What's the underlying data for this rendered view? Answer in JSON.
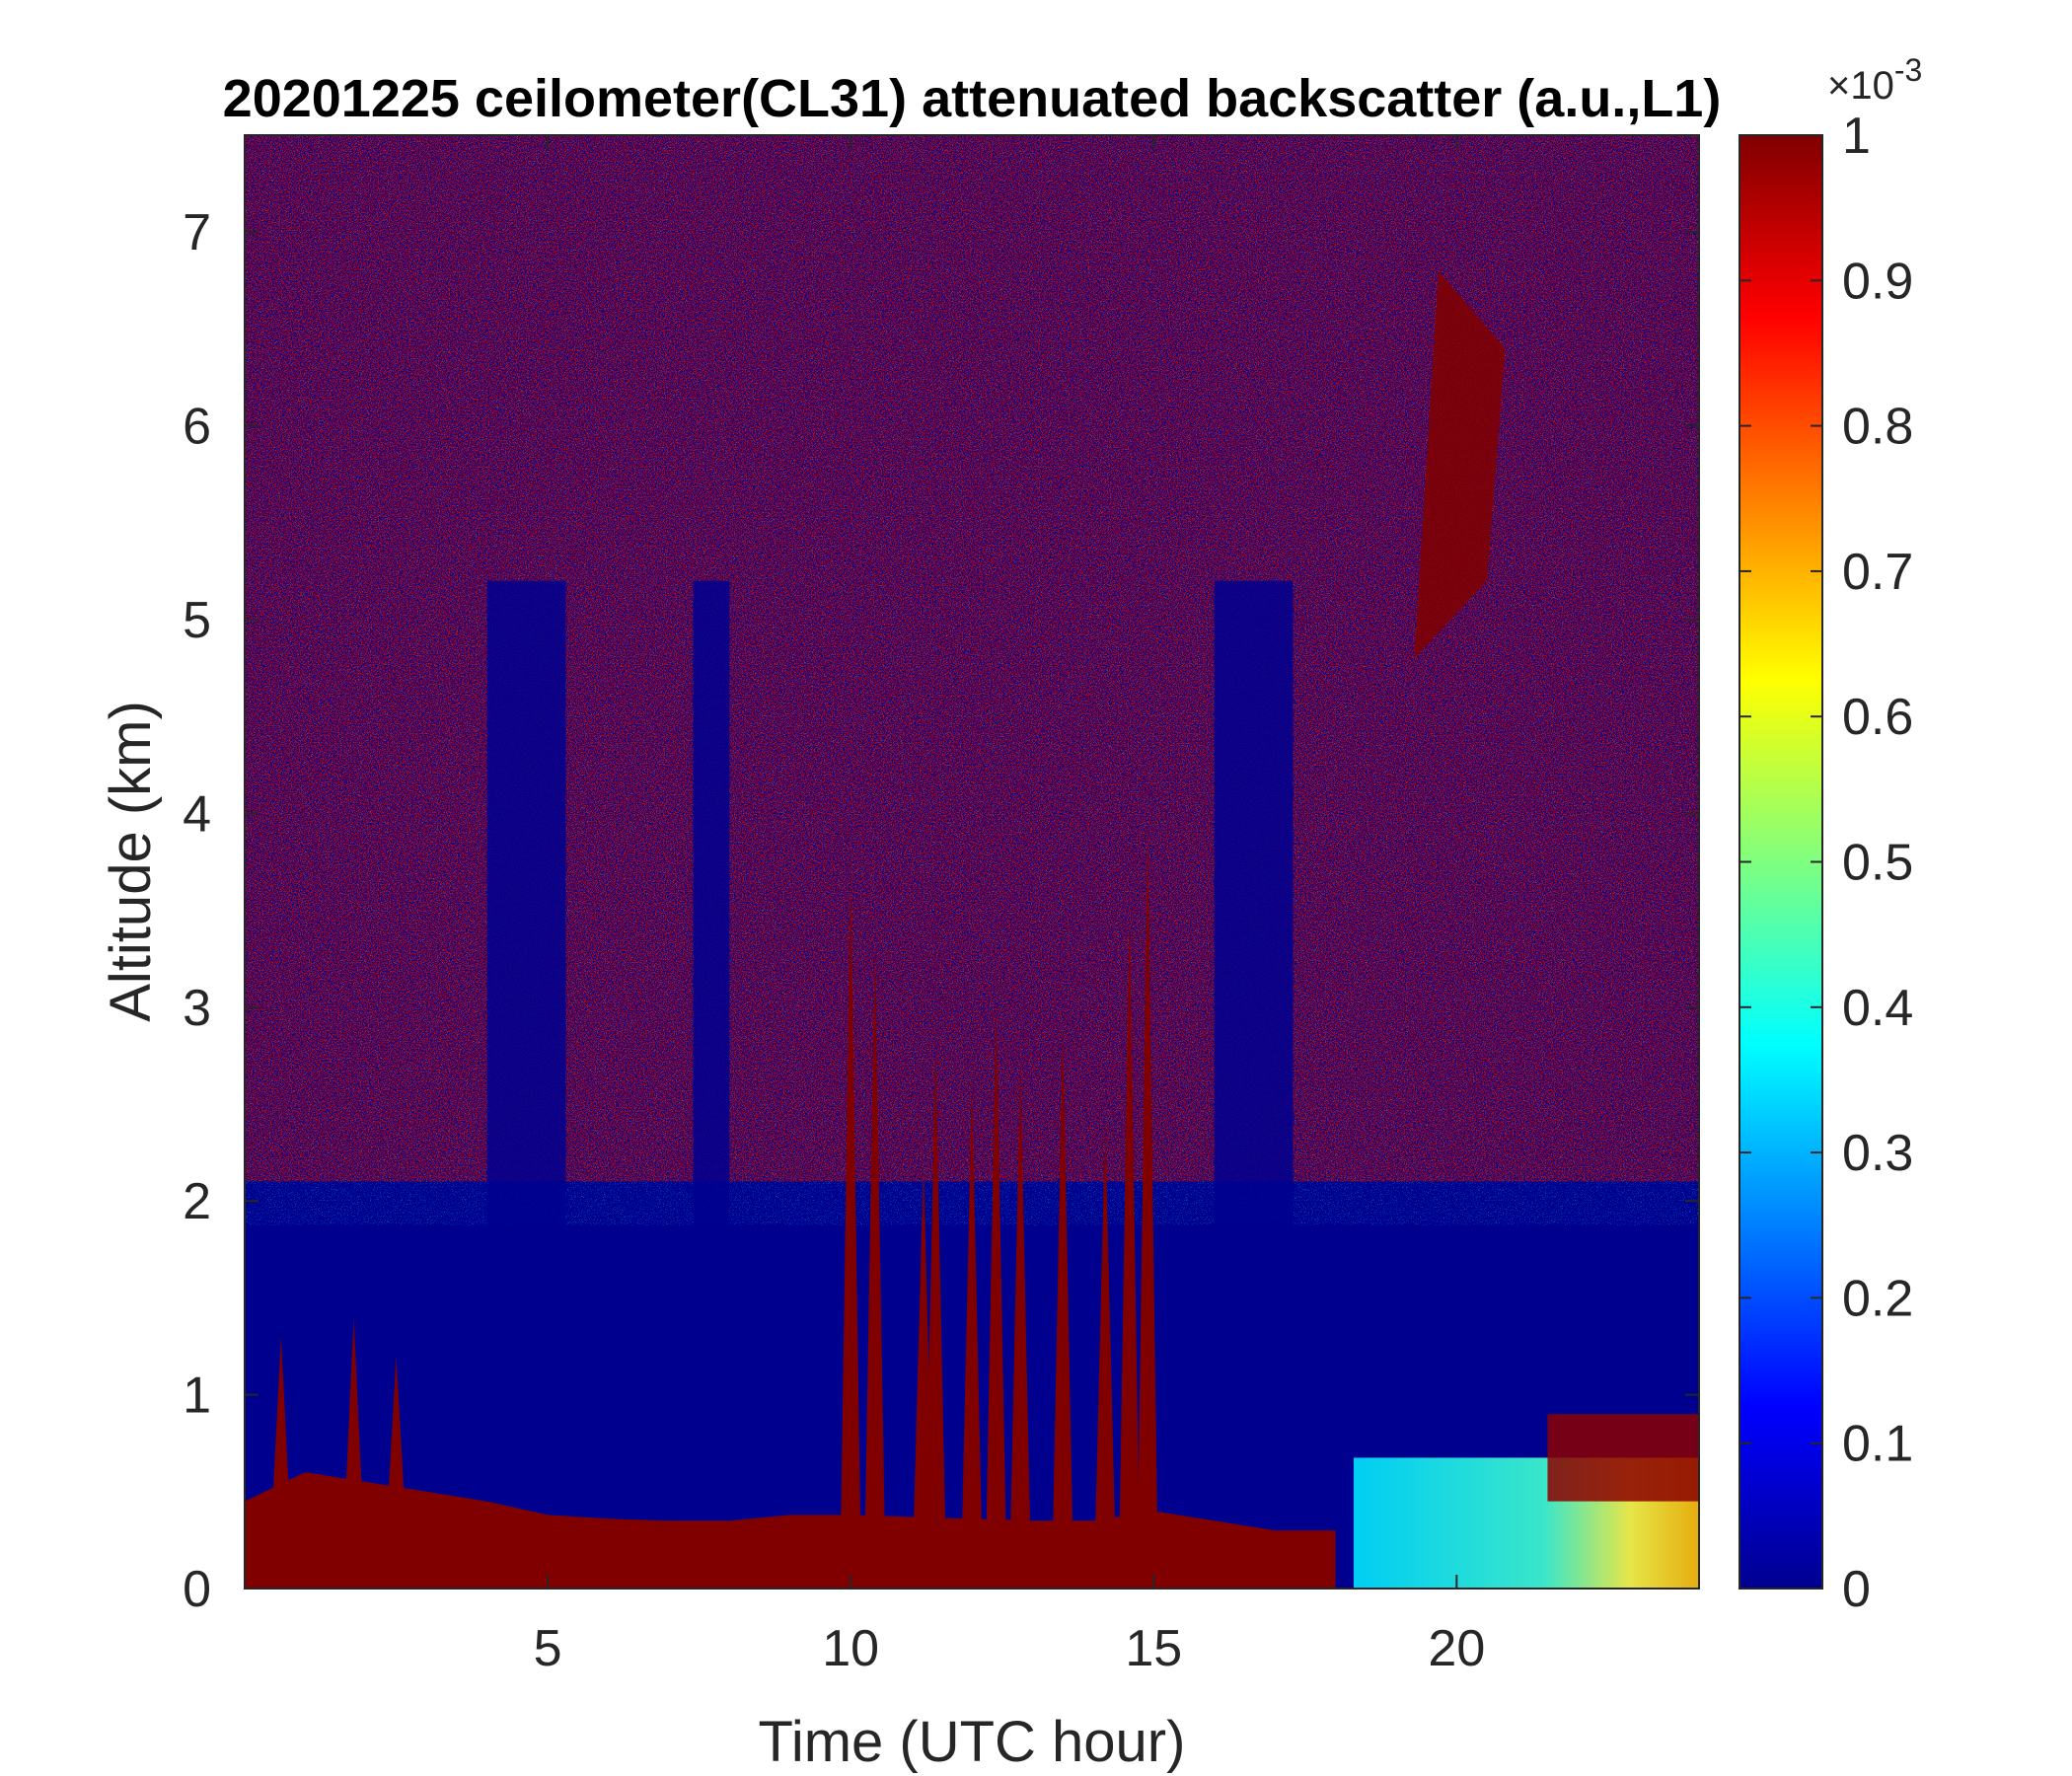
{
  "chart_data": {
    "type": "heatmap",
    "title": "20201225 ceilometer(CL31) attenuated backscatter (a.u.,L1)",
    "xlabel": "Time (UTC hour)",
    "ylabel": "Altitude (km)",
    "xlim": [
      0,
      24
    ],
    "ylim": [
      0,
      7.5
    ],
    "xticks": [
      5,
      10,
      15,
      20
    ],
    "xtick_labels": [
      "5",
      "10",
      "15",
      "20"
    ],
    "yticks": [
      0,
      1,
      2,
      3,
      4,
      5,
      6,
      7
    ],
    "ytick_labels": [
      "0",
      "1",
      "2",
      "3",
      "4",
      "5",
      "6",
      "7"
    ],
    "colorbar": {
      "colormap": "jet",
      "min": 0,
      "max": 0.001,
      "ticks": [
        0,
        0.1,
        0.2,
        0.3,
        0.4,
        0.5,
        0.6,
        0.7,
        0.8,
        0.9,
        1
      ],
      "tick_labels": [
        "0",
        "0.1",
        "0.2",
        "0.3",
        "0.4",
        "0.5",
        "0.6",
        "0.7",
        "0.8",
        "0.9",
        "1"
      ],
      "exponent_base": "×10",
      "exponent_power": "-3"
    },
    "features": {
      "surface_layer_top_km": [
        [
          0,
          0.45
        ],
        [
          1,
          0.6
        ],
        [
          2,
          0.55
        ],
        [
          3,
          0.5
        ],
        [
          4,
          0.45
        ],
        [
          5,
          0.38
        ],
        [
          6,
          0.36
        ],
        [
          7,
          0.35
        ],
        [
          8,
          0.35
        ],
        [
          9,
          0.38
        ],
        [
          10,
          0.38
        ],
        [
          11,
          0.37
        ],
        [
          12,
          0.36
        ],
        [
          13,
          0.35
        ],
        [
          14,
          0.35
        ],
        [
          15,
          0.4
        ],
        [
          16,
          0.35
        ],
        [
          17,
          0.3
        ],
        [
          18,
          0.3
        ]
      ],
      "cloud_columns": [
        {
          "t": 0.6,
          "top_km": 1.3
        },
        {
          "t": 1.8,
          "top_km": 1.4
        },
        {
          "t": 2.5,
          "top_km": 1.2
        },
        {
          "t": 10.0,
          "top_km": 3.7
        },
        {
          "t": 10.4,
          "top_km": 3.3
        },
        {
          "t": 11.2,
          "top_km": 2.2
        },
        {
          "t": 11.4,
          "top_km": 2.8
        },
        {
          "t": 12.0,
          "top_km": 2.6
        },
        {
          "t": 12.4,
          "top_km": 3.0
        },
        {
          "t": 12.8,
          "top_km": 2.7
        },
        {
          "t": 13.5,
          "top_km": 2.9
        },
        {
          "t": 14.2,
          "top_km": 2.4
        },
        {
          "t": 14.6,
          "top_km": 3.5
        },
        {
          "t": 14.9,
          "top_km": 3.9
        }
      ],
      "high_cloud": [
        {
          "t_start": 19.3,
          "t_end": 20.8,
          "bottom_km": 4.8,
          "top_km": 6.8
        }
      ],
      "boundary_layer_late": {
        "t_start": 18.3,
        "t_end": 24,
        "top_km": 0.9
      }
    }
  }
}
